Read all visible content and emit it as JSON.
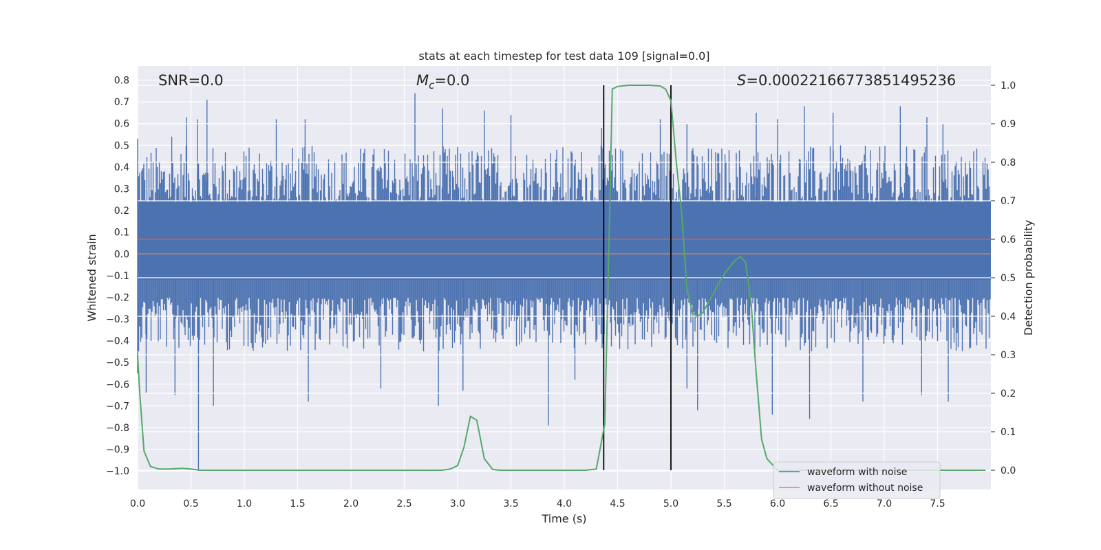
{
  "chart_data": {
    "type": "line",
    "title": "stats at each timestep for test data 109 [signal=0.0]",
    "xlabel": "Time (s)",
    "ylabel_left": "Whitened strain",
    "ylabel_right": "Detection probability",
    "xlim": [
      0.0,
      8.0
    ],
    "ylim_left": [
      -1.085,
      0.865
    ],
    "ylim_right": [
      -0.05,
      1.05
    ],
    "x_ticks": [
      "0.0",
      "0.5",
      "1.0",
      "1.5",
      "2.0",
      "2.5",
      "3.0",
      "3.5",
      "4.0",
      "4.5",
      "5.0",
      "5.5",
      "6.0",
      "6.5",
      "7.0",
      "7.5"
    ],
    "y_left_ticks": [
      "0.8",
      "0.7",
      "0.6",
      "0.5",
      "0.4",
      "0.3",
      "0.2",
      "0.1",
      "0.0",
      "-0.1",
      "-0.2",
      "-0.3",
      "-0.4",
      "-0.5",
      "-0.6",
      "-0.7",
      "-0.8",
      "-0.9",
      "-1.0"
    ],
    "y_right_ticks": [
      "1.0",
      "0.9",
      "0.8",
      "0.7",
      "0.6",
      "0.5",
      "0.4",
      "0.3",
      "0.2",
      "0.1",
      "0.0"
    ],
    "grid": true,
    "legend_position": "lower-right",
    "annotations": {
      "snr_name": "SNR",
      "snr_value": "0.0",
      "mc_symbol": "M",
      "mc_subscript": "c",
      "mc_value": "0.0",
      "s_symbol": "S",
      "s_value": "0.00022166773851495236"
    },
    "threshold_line": {
      "y": 0.6,
      "color": "#c44e52"
    },
    "vertical_lines": [
      4.37,
      5.0
    ],
    "series": [
      {
        "name": "waveform with noise",
        "color": "#4c72b0",
        "kind": "noise",
        "envelope_core": [
          -0.12,
          0.24
        ],
        "typical_range": [
          -0.45,
          0.5
        ],
        "peaks_high": [
          [
            0.0,
            0.53
          ],
          [
            0.32,
            0.54
          ],
          [
            0.46,
            0.63
          ],
          [
            0.56,
            0.62
          ],
          [
            0.65,
            0.71
          ],
          [
            1.3,
            0.62
          ],
          [
            1.57,
            0.62
          ],
          [
            2.6,
            0.74
          ],
          [
            2.86,
            0.67
          ],
          [
            3.25,
            0.66
          ],
          [
            3.5,
            0.64
          ],
          [
            4.35,
            0.58
          ],
          [
            4.9,
            0.62
          ],
          [
            5.15,
            0.6
          ],
          [
            5.8,
            0.65
          ],
          [
            6.0,
            0.62
          ],
          [
            6.25,
            0.68
          ],
          [
            6.52,
            0.65
          ],
          [
            7.15,
            0.68
          ],
          [
            7.4,
            0.63
          ],
          [
            7.55,
            0.6
          ]
        ],
        "peaks_low": [
          [
            0.0,
            -0.55
          ],
          [
            0.08,
            -0.64
          ],
          [
            0.35,
            -0.65
          ],
          [
            0.57,
            -1.0
          ],
          [
            0.71,
            -0.7
          ],
          [
            1.6,
            -0.68
          ],
          [
            2.28,
            -0.62
          ],
          [
            2.82,
            -0.7
          ],
          [
            3.05,
            -0.63
          ],
          [
            3.85,
            -0.79
          ],
          [
            4.1,
            -0.58
          ],
          [
            5.15,
            -0.62
          ],
          [
            5.25,
            -0.72
          ],
          [
            5.95,
            -0.74
          ],
          [
            6.3,
            -0.76
          ],
          [
            6.8,
            -0.68
          ],
          [
            7.35,
            -0.65
          ],
          [
            7.6,
            -0.68
          ]
        ]
      },
      {
        "name": "waveform without noise",
        "color": "#dd8452",
        "x": [
          0.0,
          8.0
        ],
        "y": [
          0.0,
          0.0
        ]
      },
      {
        "name": "detection probability",
        "color": "#55a868",
        "axis": "right",
        "x": [
          0.0,
          0.02,
          0.06,
          0.12,
          0.2,
          0.3,
          0.42,
          0.5,
          0.58,
          0.7,
          1.0,
          2.0,
          2.5,
          2.85,
          2.93,
          3.0,
          3.06,
          3.12,
          3.18,
          3.25,
          3.33,
          3.4,
          3.6,
          4.0,
          4.2,
          4.3,
          4.38,
          4.42,
          4.45,
          4.5,
          4.6,
          4.8,
          4.9,
          4.95,
          5.0,
          5.05,
          5.1,
          5.15,
          5.2,
          5.25,
          5.3,
          5.4,
          5.5,
          5.6,
          5.65,
          5.7,
          5.75,
          5.8,
          5.85,
          5.9,
          6.0,
          6.5,
          7.0,
          7.5,
          7.95
        ],
        "y": [
          0.3,
          0.2,
          0.05,
          0.01,
          0.003,
          0.003,
          0.005,
          0.003,
          0.0,
          0.0,
          0.0,
          0.0,
          0.0,
          0.0,
          0.003,
          0.012,
          0.06,
          0.14,
          0.13,
          0.03,
          0.002,
          0.0,
          0.0,
          0.0,
          0.0,
          0.003,
          0.12,
          0.6,
          0.99,
          0.997,
          1.0,
          1.0,
          0.998,
          0.99,
          0.96,
          0.8,
          0.67,
          0.47,
          0.41,
          0.4,
          0.41,
          0.46,
          0.51,
          0.545,
          0.555,
          0.54,
          0.44,
          0.25,
          0.08,
          0.03,
          0.0,
          0.0,
          0.0,
          0.0,
          0.0
        ]
      }
    ]
  }
}
